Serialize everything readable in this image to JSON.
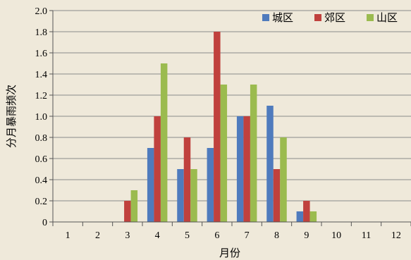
{
  "chart_data": {
    "type": "bar",
    "xlabel": "月份",
    "ylabel": "分月暴雨频次",
    "ylim": [
      0,
      2.0
    ],
    "yticks": [
      "0",
      "0.2",
      "0.4",
      "0.6",
      "0.8",
      "1.0",
      "1.2",
      "1.4",
      "1.6",
      "1.8",
      "2.0"
    ],
    "categories": [
      "1",
      "2",
      "3",
      "4",
      "5",
      "6",
      "7",
      "8",
      "9",
      "10",
      "11",
      "12"
    ],
    "grid": "horizontal",
    "legend_position": "top-right",
    "series": [
      {
        "name": "城区",
        "color": "#4f7bbd",
        "values": [
          0,
          0,
          0,
          0.7,
          0.5,
          0.7,
          1.0,
          1.1,
          0.1,
          0,
          0,
          0
        ]
      },
      {
        "name": "郊区",
        "color": "#c0413d",
        "values": [
          0,
          0,
          0.2,
          1.0,
          0.8,
          1.8,
          1.0,
          0.5,
          0.2,
          0,
          0,
          0
        ]
      },
      {
        "name": "山区",
        "color": "#9bbb4f",
        "values": [
          0,
          0,
          0.3,
          1.5,
          0.5,
          1.3,
          1.3,
          0.8,
          0.1,
          0,
          0,
          0
        ]
      }
    ]
  }
}
